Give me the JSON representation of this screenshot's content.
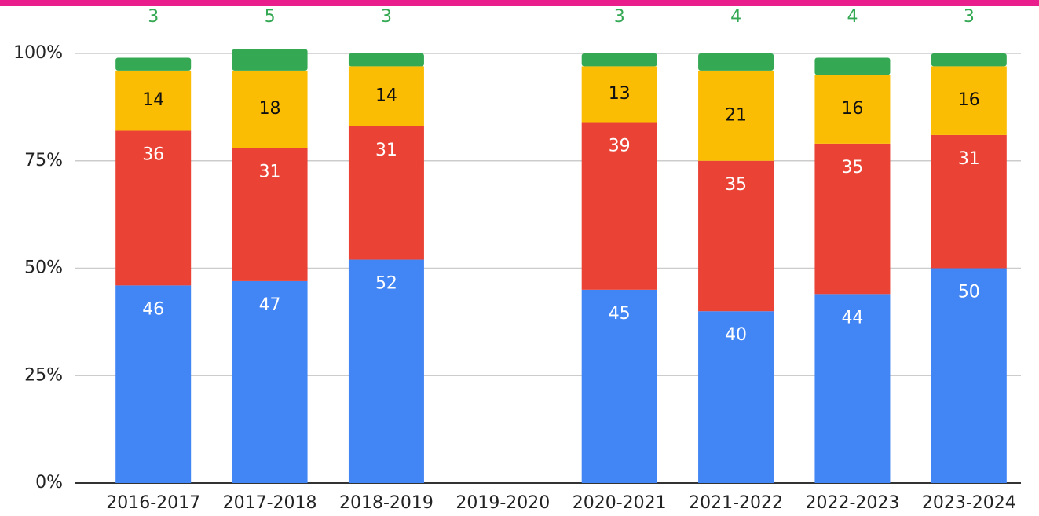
{
  "chart_data": {
    "type": "stacked_bar",
    "categories": [
      "2016-2017",
      "2017-2018",
      "2018-2019",
      "2019-2020",
      "2020-2021",
      "2021-2022",
      "2022-2023",
      "2023-2024"
    ],
    "series": [
      {
        "color": "#4285f4",
        "values": [
          46,
          47,
          52,
          null,
          45,
          40,
          44,
          50
        ]
      },
      {
        "color": "#ea4335",
        "values": [
          36,
          31,
          31,
          null,
          39,
          35,
          35,
          31
        ]
      },
      {
        "color": "#fbbc04",
        "values": [
          14,
          18,
          14,
          null,
          13,
          21,
          16,
          16
        ]
      },
      {
        "color": "#34a853",
        "values": [
          3,
          5,
          3,
          null,
          3,
          4,
          4,
          3
        ]
      }
    ],
    "ylim": [
      0,
      100
    ],
    "yticks": [
      {
        "value": 0,
        "label": "0%"
      },
      {
        "value": 25,
        "label": "25%"
      },
      {
        "value": 50,
        "label": "50%"
      },
      {
        "value": 75,
        "label": "75%"
      },
      {
        "value": 100,
        "label": "100%"
      }
    ],
    "grid": true
  }
}
